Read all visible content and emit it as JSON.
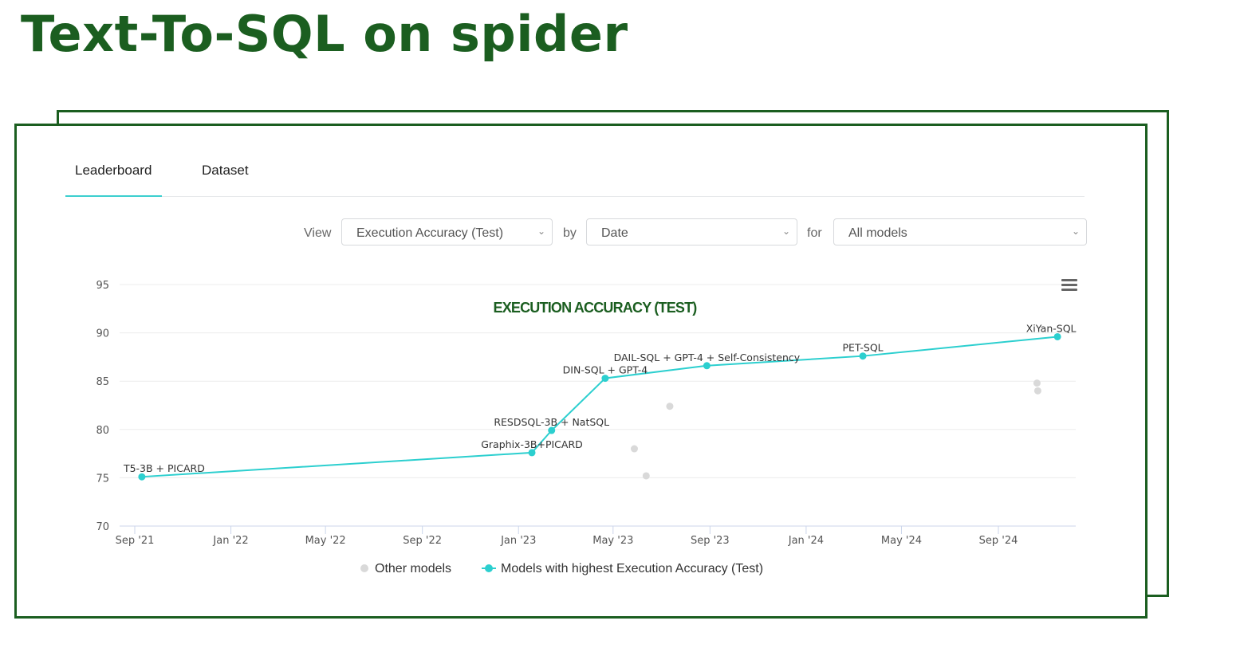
{
  "slide_title": "Text-To-SQL on spider",
  "tabs": [
    {
      "label": "Leaderboard",
      "active": true
    },
    {
      "label": "Dataset",
      "active": false
    }
  ],
  "controls": {
    "view_label": "View",
    "view_value": "Execution Accuracy (Test)",
    "by_label": "by",
    "by_value": "Date",
    "for_label": "for",
    "for_value": "All models"
  },
  "icons": {
    "menu": "hamburger-menu-icon",
    "select": "chevron-down-icon"
  },
  "colors": {
    "accent": "#2ccfcf",
    "title_green": "#1b5e20",
    "other": "#d9d9d9"
  },
  "chart_data": {
    "type": "line",
    "title": "EXECUTION ACCURACY (TEST)",
    "xlabel": "",
    "ylabel": "",
    "ylim": [
      70,
      95
    ],
    "yticks": [
      "70",
      "75",
      "80",
      "85",
      "90",
      "95"
    ],
    "xticks": [
      {
        "label": "Sep '21",
        "date": "2021-09-01"
      },
      {
        "label": "Jan '22",
        "date": "2022-01-01"
      },
      {
        "label": "May '22",
        "date": "2022-05-01"
      },
      {
        "label": "Sep '22",
        "date": "2022-09-01"
      },
      {
        "label": "Jan '23",
        "date": "2023-01-01"
      },
      {
        "label": "May '23",
        "date": "2023-05-01"
      },
      {
        "label": "Sep '23",
        "date": "2023-09-01"
      },
      {
        "label": "Jan '24",
        "date": "2024-01-01"
      },
      {
        "label": "May '24",
        "date": "2024-05-01"
      },
      {
        "label": "Sep '24",
        "date": "2024-09-01"
      }
    ],
    "grid": true,
    "legend_position": "bottom",
    "series": [
      {
        "name": "Other models",
        "type": "scatter",
        "points": [
          {
            "date": "2023-05-28",
            "value": 78.0
          },
          {
            "date": "2023-06-12",
            "value": 75.2
          },
          {
            "date": "2023-07-12",
            "value": 82.4
          },
          {
            "date": "2024-10-20",
            "value": 84.8
          },
          {
            "date": "2024-10-21",
            "value": 84.0
          }
        ]
      },
      {
        "name": "Models with highest Execution Accuracy (Test)",
        "type": "line",
        "points": [
          {
            "date": "2021-09-10",
            "value": 75.1,
            "label": "T5-3B + PICARD"
          },
          {
            "date": "2023-01-18",
            "value": 77.6,
            "label": "Graphix-3B+PICARD"
          },
          {
            "date": "2023-02-12",
            "value": 79.9,
            "label": "RESDSQL-3B + NatSQL"
          },
          {
            "date": "2023-04-21",
            "value": 85.3,
            "label": "DIN-SQL + GPT-4"
          },
          {
            "date": "2023-08-28",
            "value": 86.6,
            "label": "DAIL-SQL + GPT-4 + Self-Consistency"
          },
          {
            "date": "2024-03-13",
            "value": 87.6,
            "label": "PET-SQL"
          },
          {
            "date": "2024-11-15",
            "value": 89.6,
            "label": "XiYan-SQL"
          }
        ]
      }
    ]
  }
}
